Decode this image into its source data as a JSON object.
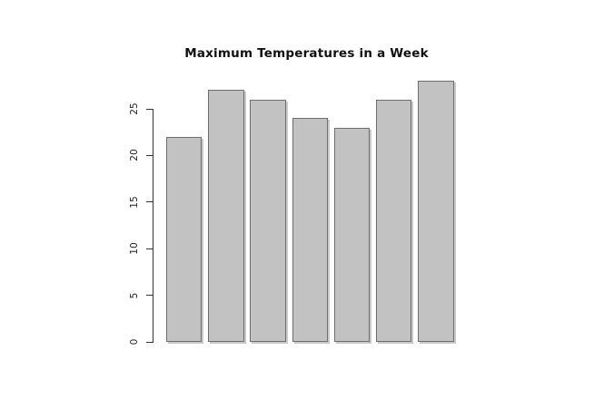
{
  "chart_data": {
    "type": "bar",
    "title": "Maximum Temperatures in a Week",
    "values": [
      22,
      27,
      26,
      24,
      23,
      26,
      28
    ],
    "yticks": [
      0,
      5,
      10,
      15,
      20,
      25
    ],
    "ylim": [
      0,
      28.5
    ],
    "xlabel": "",
    "ylabel": "",
    "grid": false,
    "x_tick_labels_visible": false,
    "colors": {
      "background": "#ffffff",
      "bar_fill": "#c2c2c2",
      "bar_border": "#6e6e6e",
      "bar_shadow": "#c9c9c9",
      "axis": "#333333",
      "title_text": "#111111",
      "tick_text": "#222222"
    }
  }
}
